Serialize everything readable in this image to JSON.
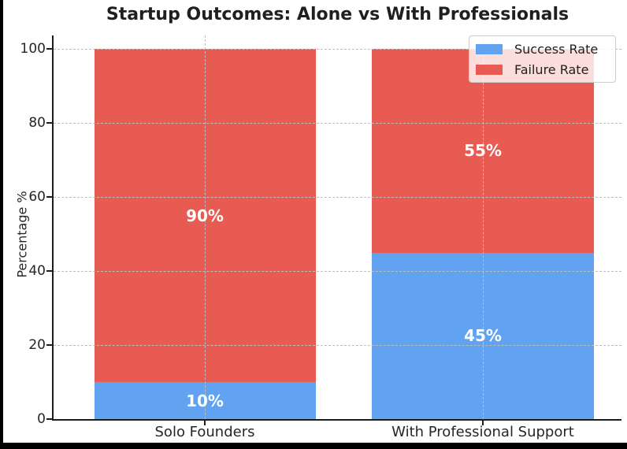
{
  "chart_data": {
    "type": "bar",
    "stacked": true,
    "title": "Startup Outcomes: Alone vs With Professionals",
    "xlabel": "",
    "ylabel": "Percentage %",
    "categories": [
      "Solo Founders",
      "With Professional Support"
    ],
    "series": [
      {
        "name": "Success Rate",
        "color": "#61A3F1",
        "values": [
          10,
          45
        ],
        "labels": [
          "10%",
          "45%"
        ]
      },
      {
        "name": "Failure Rate",
        "color": "#E85B52",
        "values": [
          90,
          55
        ],
        "labels": [
          "90%",
          "55%"
        ]
      }
    ],
    "yticks": [
      0,
      20,
      40,
      60,
      80,
      100
    ],
    "ylim": [
      0,
      103.7
    ],
    "grid": "dashed",
    "grid_over_bars": true,
    "legend_position": "upper right",
    "bar_label_color": "#ffffff"
  },
  "colors": {
    "success": "#61A3F1",
    "failure": "#E85B52",
    "grid": "#bdbdbd",
    "spine": "#1c1c1c",
    "text": "#262626"
  }
}
